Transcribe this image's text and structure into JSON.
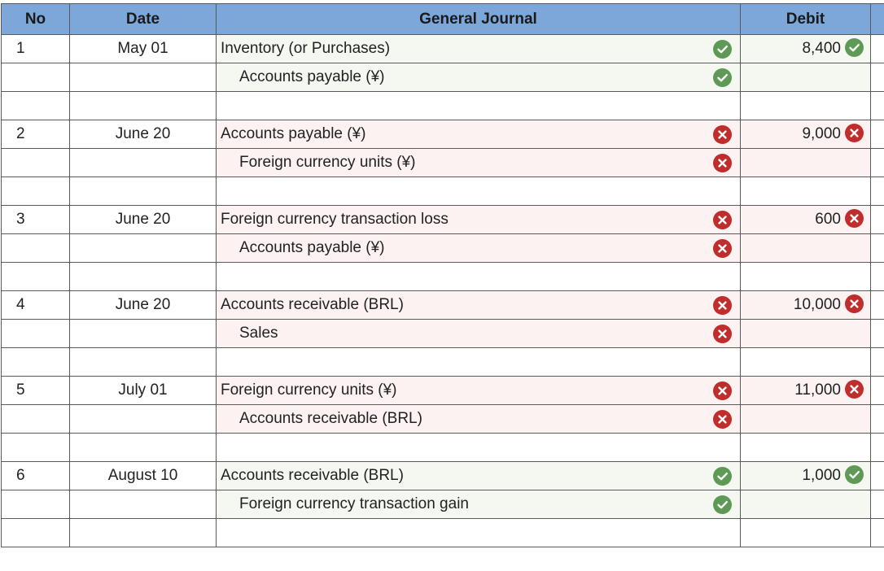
{
  "headers": {
    "no": "No",
    "date": "Date",
    "journal": "General Journal",
    "debit": "Debit"
  },
  "colors": {
    "header_bg": "#7da7d9",
    "correct": "#5e9a55",
    "incorrect": "#c02d2d"
  },
  "entries": [
    {
      "no": "1",
      "date": "May 01",
      "debit_account": "Inventory (or Purchases)",
      "credit_account": "Accounts payable (¥)",
      "debit": "8,400",
      "status": "correct"
    },
    {
      "no": "2",
      "date": "June 20",
      "debit_account": "Accounts payable (¥)",
      "credit_account": "Foreign currency units (¥)",
      "debit": "9,000",
      "status": "incorrect"
    },
    {
      "no": "3",
      "date": "June 20",
      "debit_account": "Foreign currency transaction loss",
      "credit_account": "Accounts payable (¥)",
      "debit": "600",
      "status": "incorrect"
    },
    {
      "no": "4",
      "date": "June 20",
      "debit_account": "Accounts receivable (BRL)",
      "credit_account": "Sales",
      "debit": "10,000",
      "status": "incorrect"
    },
    {
      "no": "5",
      "date": "July 01",
      "debit_account": "Foreign currency units (¥)",
      "credit_account": "Accounts receivable (BRL)",
      "debit": "11,000",
      "status": "incorrect"
    },
    {
      "no": "6",
      "date": "August 10",
      "debit_account": "Accounts receivable (BRL)",
      "credit_account": "Foreign currency transaction gain",
      "debit": "1,000",
      "status": "correct"
    }
  ]
}
